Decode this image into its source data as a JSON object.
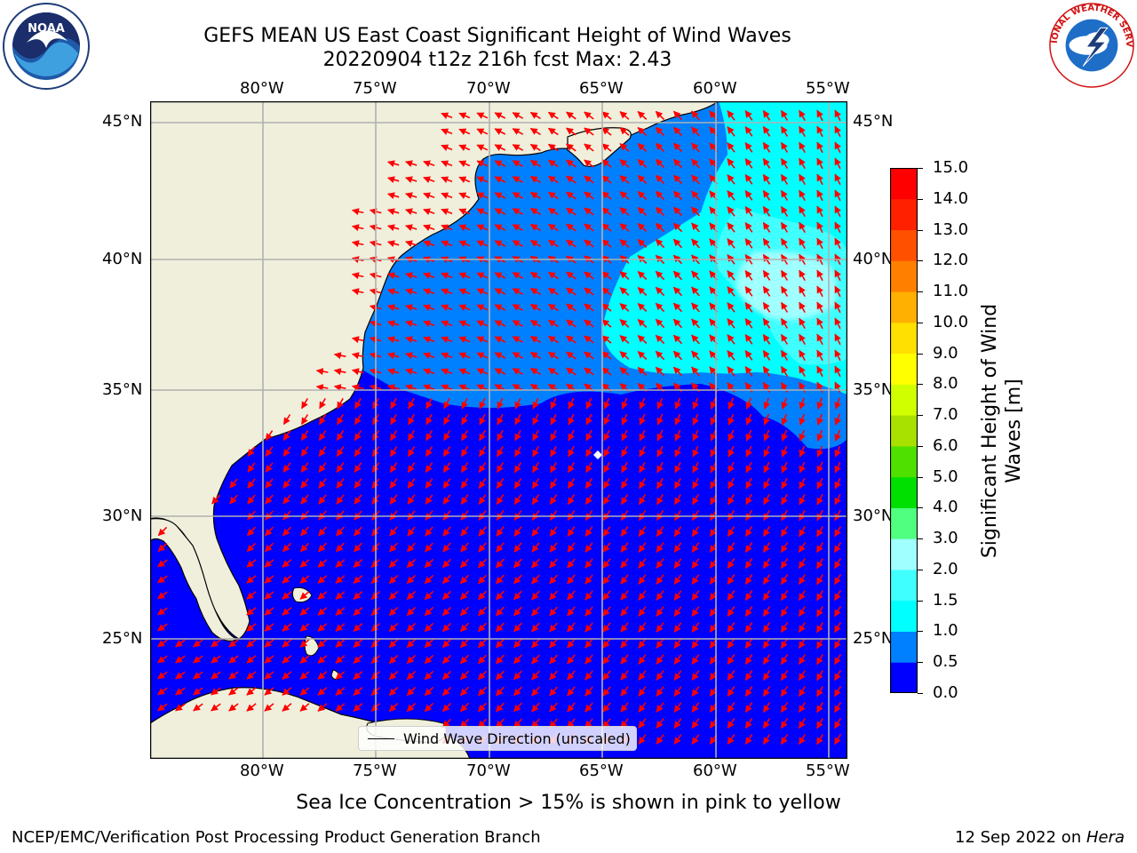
{
  "title": {
    "line1": "GEFS MEAN US East Coast Significant Height of Wind Waves",
    "line2": "20220904 t12z 216h fcst   Max: 2.43"
  },
  "map": {
    "lon_ticks": [
      "80°W",
      "75°W",
      "70°W",
      "65°W",
      "60°W",
      "55°W"
    ],
    "lat_ticks": [
      "45°N",
      "40°N",
      "35°N",
      "30°N",
      "25°N"
    ],
    "legend_label": "Wind Wave Direction (unscaled)",
    "colors": {
      "land": "#efefdc",
      "coast": "#000000",
      "grid": "#b0b0b0",
      "arrow": "#ff0000"
    }
  },
  "colorbar": {
    "label_line1": "Significant Height of Wind",
    "label_line2": "Waves [m]",
    "ticks": [
      "0.0",
      "0.5",
      "1.0",
      "1.5",
      "2.0",
      "3.0",
      "4.0",
      "5.0",
      "6.0",
      "7.0",
      "8.0",
      "9.0",
      "10.0",
      "11.0",
      "12.0",
      "13.0",
      "14.0",
      "15.0"
    ],
    "colors": [
      "#0000ff",
      "#0080ff",
      "#00ffff",
      "#40ffff",
      "#a0ffff",
      "#50ff80",
      "#00e000",
      "#50e000",
      "#a8e000",
      "#d0ff00",
      "#ffff00",
      "#ffe000",
      "#ffb000",
      "#ff8000",
      "#ff5000",
      "#ff2000",
      "#ff0000"
    ]
  },
  "logos": {
    "noaa_text": "NOAA",
    "nws_text": "NATIONAL WEATHER SERVICE"
  },
  "caption": "Sea Ice Concentration > 15% is shown in pink to yellow",
  "footer": {
    "left": "NCEP/EMC/Verification Post Processing Product Generation Branch",
    "right_prefix": "12 Sep 2022 on ",
    "right_host": "Hera"
  }
}
